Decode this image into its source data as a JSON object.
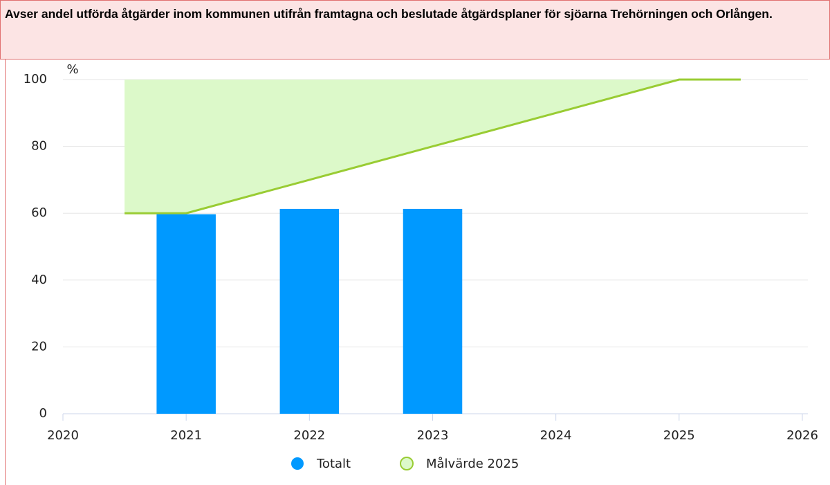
{
  "chart_data": {
    "type": "bar",
    "title": "Avser andel utförda åtgärder inom kommunen utifrån framtagna och beslutade åtgärdsplaner för sjöarna Trehörningen och Orlången.",
    "y_label": "%",
    "xlim": [
      2020,
      2026
    ],
    "xticks": [
      2020,
      2021,
      2022,
      2023,
      2024,
      2025,
      2026
    ],
    "ylim": [
      0,
      100
    ],
    "yticks": [
      0,
      20,
      40,
      60,
      80,
      100
    ],
    "grid": true,
    "series": [
      {
        "name": "Totalt",
        "type": "bar",
        "color": "#0099ff",
        "x": [
          2021,
          2022,
          2023
        ],
        "values": [
          59.7,
          61.3,
          61.3
        ]
      },
      {
        "name": "Målvärde 2025",
        "type": "area",
        "color": "#99cc33",
        "fill": "#dcf9c9",
        "x": [
          2020.5,
          2021,
          2022,
          2023,
          2024,
          2025,
          2025.5
        ],
        "values": [
          60,
          60,
          70,
          80,
          90,
          100,
          100
        ]
      }
    ]
  }
}
